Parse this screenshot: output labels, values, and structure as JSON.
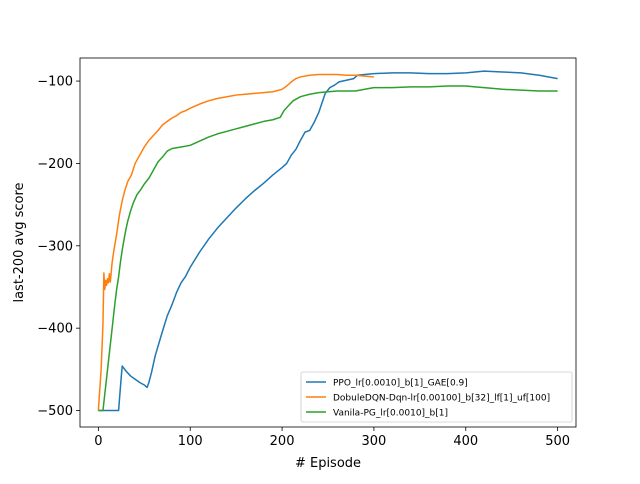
{
  "chart_data": {
    "type": "line",
    "title": "",
    "xlabel": "# Episode",
    "ylabel": "last-200 avg score",
    "xlim": [
      -20,
      520
    ],
    "ylim": [
      -520,
      -72
    ],
    "xticks": [
      0,
      100,
      200,
      300,
      400,
      500
    ],
    "yticks": [
      -500,
      -400,
      -300,
      -200,
      -100
    ],
    "xtick_labels": [
      "0",
      "100",
      "200",
      "300",
      "400",
      "500"
    ],
    "ytick_labels": [
      "−500",
      "−400",
      "−300",
      "−200",
      "−100"
    ],
    "grid": false,
    "legend_position": "lower-right",
    "series": [
      {
        "name": "PPO_lr[0.0010]_b[1]_GAE[0.9]",
        "color": "#1f77b4",
        "points": [
          [
            0,
            -500
          ],
          [
            10,
            -500
          ],
          [
            22,
            -500
          ],
          [
            25,
            -458
          ],
          [
            26,
            -446
          ],
          [
            30,
            -452
          ],
          [
            35,
            -458
          ],
          [
            40,
            -462
          ],
          [
            45,
            -466
          ],
          [
            50,
            -469
          ],
          [
            53,
            -472
          ],
          [
            55,
            -466
          ],
          [
            58,
            -453
          ],
          [
            62,
            -433
          ],
          [
            66,
            -418
          ],
          [
            70,
            -403
          ],
          [
            75,
            -385
          ],
          [
            80,
            -372
          ],
          [
            85,
            -357
          ],
          [
            90,
            -345
          ],
          [
            95,
            -337
          ],
          [
            100,
            -326
          ],
          [
            110,
            -308
          ],
          [
            120,
            -292
          ],
          [
            130,
            -278
          ],
          [
            140,
            -266
          ],
          [
            150,
            -254
          ],
          [
            160,
            -243
          ],
          [
            170,
            -233
          ],
          [
            180,
            -224
          ],
          [
            190,
            -214
          ],
          [
            200,
            -205
          ],
          [
            205,
            -200
          ],
          [
            210,
            -190
          ],
          [
            215,
            -183
          ],
          [
            220,
            -172
          ],
          [
            225,
            -162
          ],
          [
            230,
            -160
          ],
          [
            235,
            -150
          ],
          [
            240,
            -138
          ],
          [
            243,
            -128
          ],
          [
            247,
            -115
          ],
          [
            252,
            -108
          ],
          [
            257,
            -105
          ],
          [
            262,
            -101
          ],
          [
            270,
            -99
          ],
          [
            278,
            -97
          ],
          [
            282,
            -93
          ],
          [
            290,
            -92
          ],
          [
            300,
            -91
          ],
          [
            320,
            -90
          ],
          [
            340,
            -90
          ],
          [
            360,
            -91
          ],
          [
            380,
            -91
          ],
          [
            400,
            -90
          ],
          [
            410,
            -89
          ],
          [
            420,
            -88
          ],
          [
            440,
            -89
          ],
          [
            460,
            -90
          ],
          [
            480,
            -93
          ],
          [
            500,
            -97
          ]
        ]
      },
      {
        "name": "DobuleDQN-Dqn-lr[0.00100]_b[32]_lf[1]_uf[100]",
        "color": "#ff7f0e",
        "points": [
          [
            0,
            -500
          ],
          [
            3,
            -450
          ],
          [
            5,
            -395
          ],
          [
            6,
            -333
          ],
          [
            7,
            -353
          ],
          [
            8,
            -342
          ],
          [
            9,
            -348
          ],
          [
            10,
            -340
          ],
          [
            11,
            -345
          ],
          [
            12,
            -334
          ],
          [
            13,
            -344
          ],
          [
            14,
            -332
          ],
          [
            15,
            -320
          ],
          [
            17,
            -305
          ],
          [
            20,
            -285
          ],
          [
            23,
            -262
          ],
          [
            26,
            -245
          ],
          [
            29,
            -232
          ],
          [
            32,
            -222
          ],
          [
            36,
            -214
          ],
          [
            40,
            -200
          ],
          [
            45,
            -190
          ],
          [
            50,
            -180
          ],
          [
            55,
            -172
          ],
          [
            60,
            -166
          ],
          [
            65,
            -160
          ],
          [
            70,
            -153
          ],
          [
            75,
            -149
          ],
          [
            80,
            -145
          ],
          [
            85,
            -142
          ],
          [
            90,
            -138
          ],
          [
            95,
            -136
          ],
          [
            100,
            -133
          ],
          [
            110,
            -128
          ],
          [
            120,
            -124
          ],
          [
            130,
            -121
          ],
          [
            140,
            -119
          ],
          [
            150,
            -117
          ],
          [
            160,
            -116
          ],
          [
            170,
            -115
          ],
          [
            180,
            -114
          ],
          [
            190,
            -113
          ],
          [
            200,
            -110
          ],
          [
            205,
            -106
          ],
          [
            210,
            -101
          ],
          [
            215,
            -97
          ],
          [
            220,
            -95
          ],
          [
            230,
            -93
          ],
          [
            240,
            -92
          ],
          [
            250,
            -92
          ],
          [
            260,
            -92
          ],
          [
            270,
            -93
          ],
          [
            280,
            -93
          ],
          [
            290,
            -94
          ],
          [
            300,
            -95
          ]
        ]
      },
      {
        "name": "Vanila-PG_lr[0.0010]_b[1]",
        "color": "#2ca02c",
        "points": [
          [
            0,
            -500
          ],
          [
            5,
            -500
          ],
          [
            8,
            -470
          ],
          [
            10,
            -450
          ],
          [
            12,
            -430
          ],
          [
            14,
            -410
          ],
          [
            16,
            -390
          ],
          [
            18,
            -370
          ],
          [
            20,
            -352
          ],
          [
            22,
            -338
          ],
          [
            24,
            -320
          ],
          [
            26,
            -305
          ],
          [
            28,
            -292
          ],
          [
            30,
            -280
          ],
          [
            32,
            -270
          ],
          [
            35,
            -258
          ],
          [
            38,
            -248
          ],
          [
            42,
            -238
          ],
          [
            46,
            -232
          ],
          [
            50,
            -225
          ],
          [
            55,
            -218
          ],
          [
            60,
            -208
          ],
          [
            65,
            -198
          ],
          [
            70,
            -192
          ],
          [
            75,
            -185
          ],
          [
            80,
            -182
          ],
          [
            85,
            -181
          ],
          [
            90,
            -180
          ],
          [
            100,
            -178
          ],
          [
            110,
            -173
          ],
          [
            120,
            -168
          ],
          [
            130,
            -164
          ],
          [
            140,
            -161
          ],
          [
            150,
            -158
          ],
          [
            160,
            -155
          ],
          [
            170,
            -152
          ],
          [
            180,
            -149
          ],
          [
            190,
            -147
          ],
          [
            198,
            -144
          ],
          [
            202,
            -136
          ],
          [
            206,
            -131
          ],
          [
            212,
            -124
          ],
          [
            220,
            -119
          ],
          [
            230,
            -116
          ],
          [
            240,
            -114
          ],
          [
            250,
            -113
          ],
          [
            260,
            -112
          ],
          [
            270,
            -112
          ],
          [
            280,
            -112
          ],
          [
            290,
            -110
          ],
          [
            300,
            -108
          ],
          [
            320,
            -108
          ],
          [
            340,
            -107
          ],
          [
            360,
            -107
          ],
          [
            380,
            -106
          ],
          [
            400,
            -106
          ],
          [
            410,
            -107
          ],
          [
            420,
            -108
          ],
          [
            440,
            -110
          ],
          [
            460,
            -111
          ],
          [
            480,
            -112
          ],
          [
            500,
            -112
          ]
        ]
      }
    ]
  }
}
